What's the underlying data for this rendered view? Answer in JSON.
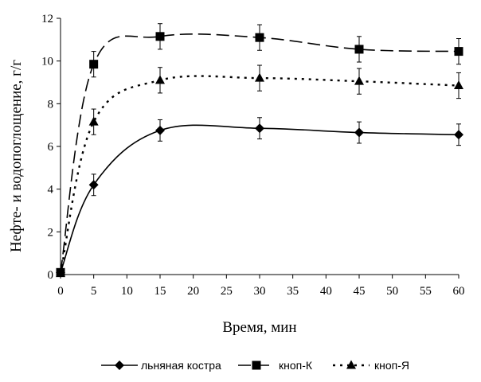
{
  "chart_data": {
    "type": "line",
    "title": "",
    "xlabel": "Время, мин",
    "ylabel": "Нефте- и водопоглощение, г/г",
    "xlim": [
      0,
      60
    ],
    "ylim": [
      0,
      12
    ],
    "xticks": [
      "0",
      "5",
      "10",
      "15",
      "20",
      "25",
      "30",
      "35",
      "40",
      "45",
      "50",
      "55",
      "60"
    ],
    "yticks": [
      "0",
      "2",
      "4",
      "6",
      "8",
      "10",
      "12"
    ],
    "grid": false,
    "legend_position": "bottom",
    "series": [
      {
        "name": "льняная костра",
        "marker": "diamond",
        "dash": "solid",
        "color": "#000000",
        "x": [
          0,
          5,
          15,
          30,
          45,
          60
        ],
        "y": [
          0.1,
          4.2,
          6.75,
          6.85,
          6.65,
          6.55
        ],
        "error": [
          0.5,
          0.5,
          0.5,
          0.5,
          0.5,
          0.5
        ]
      },
      {
        "name": "кноп-К",
        "marker": "square",
        "dash": "dashed",
        "color": "#000000",
        "x": [
          0,
          5,
          15,
          30,
          45,
          60
        ],
        "y": [
          0.1,
          9.85,
          11.15,
          11.1,
          10.55,
          10.45
        ],
        "error": [
          0.6,
          0.6,
          0.6,
          0.6,
          0.6,
          0.6
        ]
      },
      {
        "name": "кноп-Я",
        "marker": "triangle",
        "dash": "dotted",
        "color": "#000000",
        "x": [
          0,
          5,
          15,
          30,
          45,
          60
        ],
        "y": [
          0.05,
          7.15,
          9.1,
          9.2,
          9.05,
          8.85
        ],
        "error": [
          0.6,
          0.6,
          0.6,
          0.6,
          0.6,
          0.6
        ]
      }
    ]
  }
}
